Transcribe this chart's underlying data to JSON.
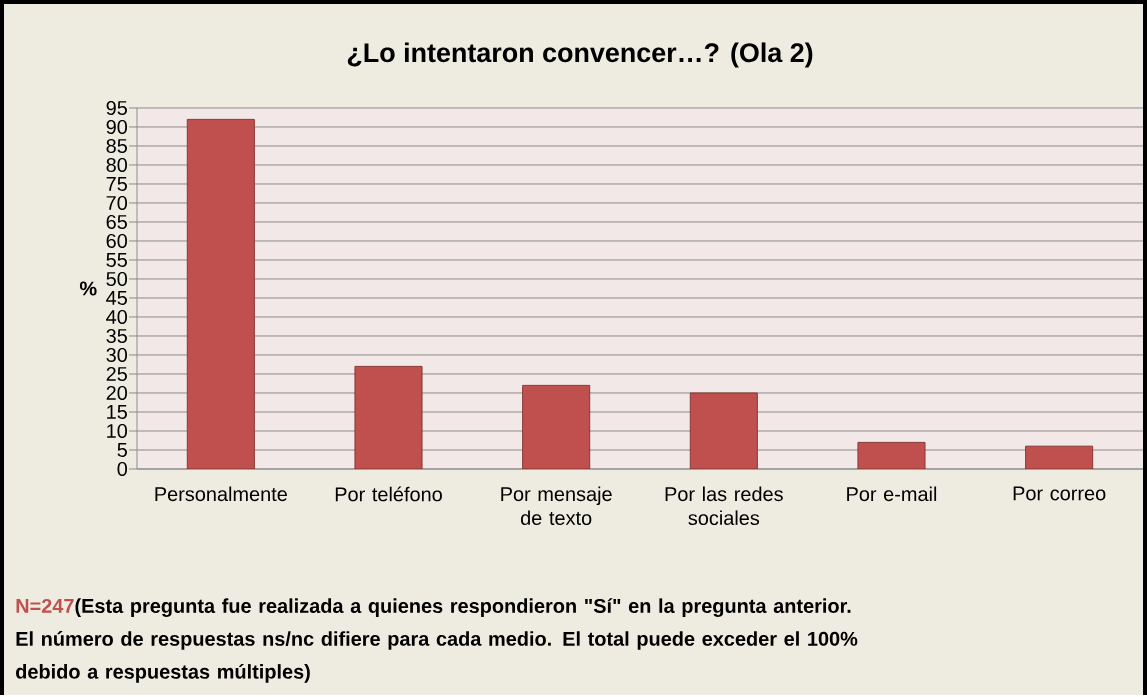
{
  "chart_data": {
    "type": "bar",
    "title": "¿Lo intentaron convencer…? (Ola 2)",
    "ylabel": "%",
    "categories": [
      "Personalmente",
      "Por teléfono",
      "Por mensaje de texto",
      "Por las redes sociales",
      "Por e-mail",
      "Por correo"
    ],
    "values": [
      92,
      27,
      22,
      20,
      7,
      6
    ],
    "color": "#c0504d",
    "ylim": [
      0,
      95
    ],
    "yticks": [
      0,
      5,
      10,
      15,
      20,
      25,
      30,
      35,
      40,
      45,
      50,
      55,
      60,
      65,
      70,
      75,
      80,
      85,
      90,
      95
    ],
    "grid": "y",
    "annotations": [
      "N=247",
      "(Esta pregunta fue realizada a quienes respondieron \"Sí\" en la pregunta anterior. El número de respuestas ns/nc difiere para cada medio. El total puede exceder el 100% debido a respuestas múltiples)"
    ]
  }
}
